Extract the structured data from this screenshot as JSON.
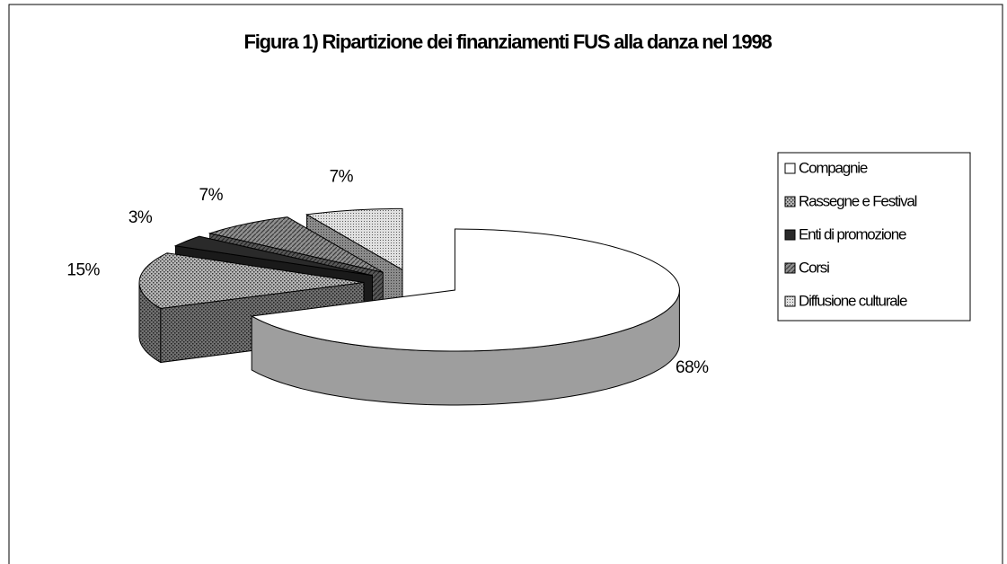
{
  "chart_data": {
    "type": "pie",
    "title": "Figura 1) Ripartizione dei finanziamenti FUS alla danza nel 1998",
    "categories": [
      "Compagnie",
      "Rassegne e Festival",
      "Enti di promozione",
      "Corsi",
      "Diffusione culturale"
    ],
    "values": [
      68,
      15,
      3,
      7,
      7
    ],
    "value_labels": [
      "68%",
      "15%",
      "3%",
      "7%",
      "7%"
    ],
    "colors": [
      "#ffffff",
      "#b8b8b8",
      "#2a2a2a",
      "#909090",
      "#e0e0e0"
    ],
    "legend": "right"
  }
}
